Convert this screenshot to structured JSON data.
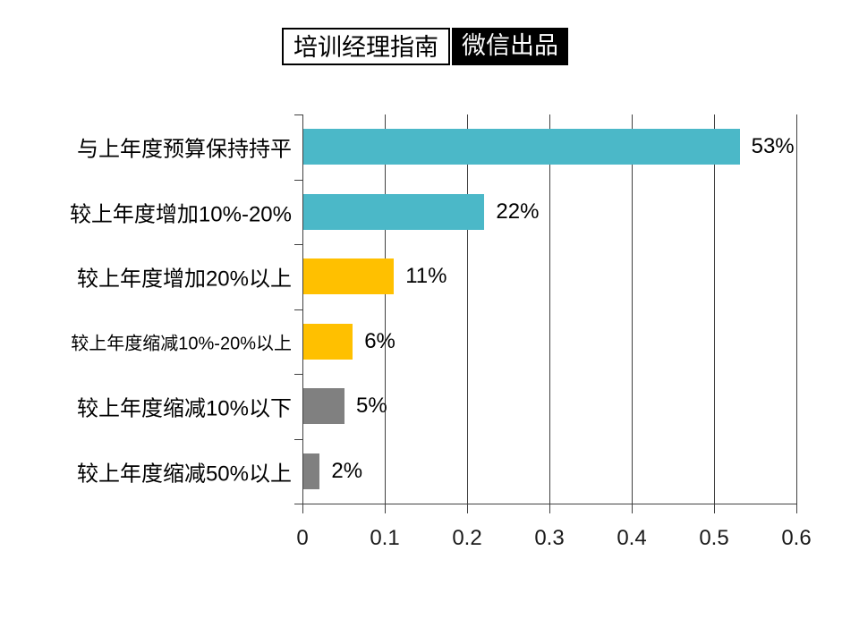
{
  "badge": {
    "left_text": "培训经理指南",
    "right_text": "微信出品"
  },
  "chart_data": {
    "type": "bar",
    "orientation": "horizontal",
    "title": "",
    "xlabel": "",
    "ylabel": "",
    "categories": [
      "与上年度预算保持持平",
      "较上年度增加10%-20%",
      "较上年度增加20%以上",
      "较上年度缩减10%-20%以上",
      "较上年度缩减10%以下",
      "较上年度缩减50%以上"
    ],
    "values": [
      0.53,
      0.22,
      0.11,
      0.06,
      0.05,
      0.02
    ],
    "value_labels": [
      "53%",
      "22%",
      "11%",
      "6%",
      "5%",
      "2%"
    ],
    "bar_colors": [
      "#4BB8C8",
      "#4BB8C8",
      "#FFC000",
      "#FFC000",
      "#808080",
      "#808080"
    ],
    "x_ticks": [
      "0",
      "0.1",
      "0.2",
      "0.3",
      "0.4",
      "0.5",
      "0.6"
    ],
    "x_tick_values": [
      0,
      0.1,
      0.2,
      0.3,
      0.4,
      0.5,
      0.6
    ],
    "xlim": [
      0,
      0.6
    ],
    "grid": "vertical",
    "legend": null,
    "colors": {
      "teal": "#4BB8C8",
      "amber": "#FFC000",
      "gray": "#808080",
      "gridline": "#404040",
      "text": "#000000"
    }
  }
}
